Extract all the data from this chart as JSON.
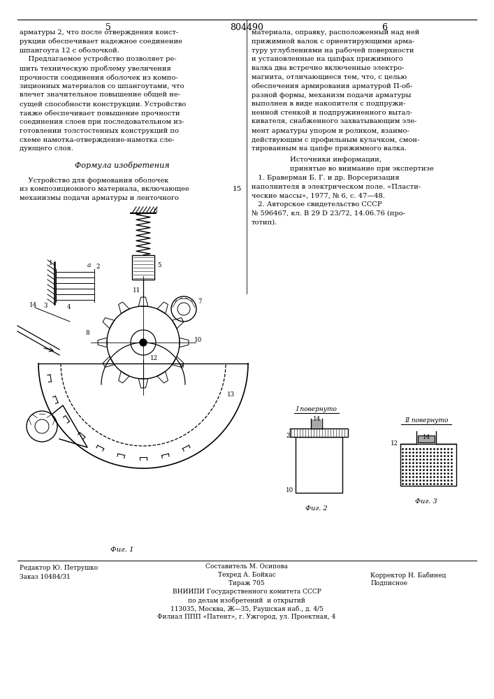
{
  "bg_color": "#ffffff",
  "page_header": {
    "left_page_num": "5",
    "center_patent": "804490",
    "right_page_num": "6"
  },
  "left_col_lines": [
    "арматуры 2, что после отверждения конст-",
    "рукции обеспечивает надежное соединение",
    "шпангоута 12 с оболочкой.",
    "    Предлагаемое устройство позволяет ре-",
    "шить техническую проблему увеличения",
    "прочности соединения оболочек из компо-",
    "зиционных материалов со шпангоутами, что",
    "влечет значительное повышение общей не-",
    "сущей способности конструкции. Устройство",
    "также обеспечивает повышение прочности",
    "соединения слоев при последовательном из-",
    "готовлении толстостенных конструкций по",
    "схеме намотка-отверждение-намотка сле-",
    "дующего слоя."
  ],
  "formula_label": "Формула изобретения",
  "formula_lines": [
    "    Устройство для формования оболочек",
    "из композиционного материала, включающее",
    "механизмы подачи арматуры и ленточного"
  ],
  "right_col_lines": [
    "материала, оправку, расположенный над ней",
    "прижимной валок с ориентирующими арма-",
    "туру углублениями на рабочей поверхности",
    "и установленные на цапфах прижимного",
    "валка два встречно включенные электро-",
    "магнита, отличающиеся тем, что, с целью",
    "обеспечения армирования арматурой П-об-",
    "разной формы, механизм подачи арматуры",
    "выполнен в виде накопителя с подпружи-",
    "ненной стенкой и подпружиненного вытал-",
    "кивателя, снабженного захватывающим эле-",
    "мент арматуры упором и роликом, взаимо-",
    "действующим с профильным кулачком, смон-",
    "тированным на цапфе прижимного валка."
  ],
  "sources_hdr": "Источники информации,",
  "sources_sub": "принятые во внимание при экспертизе",
  "sources": [
    "   1. Браверман Б. Г. и др. Ворсеризация",
    "наполнителя в электрическом поле. «Пласти-",
    "ческие массы», 1977, № 6, с. 47—48.",
    "   2. Авторское свидетельство СССР",
    "№ 596467, кл. B 29 D 23/72, 14.06.76 (про-",
    "тотип)."
  ],
  "line_num": "15",
  "footer_left1": "Редактор Ю. Петрушко",
  "footer_left2": "Заказ 10484/31",
  "footer_c0": "Составитель М. Осипова",
  "footer_c1": "Техред А. Бойкас",
  "footer_c2": "Тираж 705",
  "footer_r1": "Корректор Н. Бабинец",
  "footer_r2": "Подписное",
  "footer_o1": "ВНИИПИ Государственного комитета СССР",
  "footer_o2": "по делам изобретений  и открытий",
  "footer_o3": "113035, Москва, Ж—35, Раушская наб., д. 4/5",
  "footer_o4": "Филиал ППП «Патент», г. Ужгород, ул. Проектная, 4"
}
